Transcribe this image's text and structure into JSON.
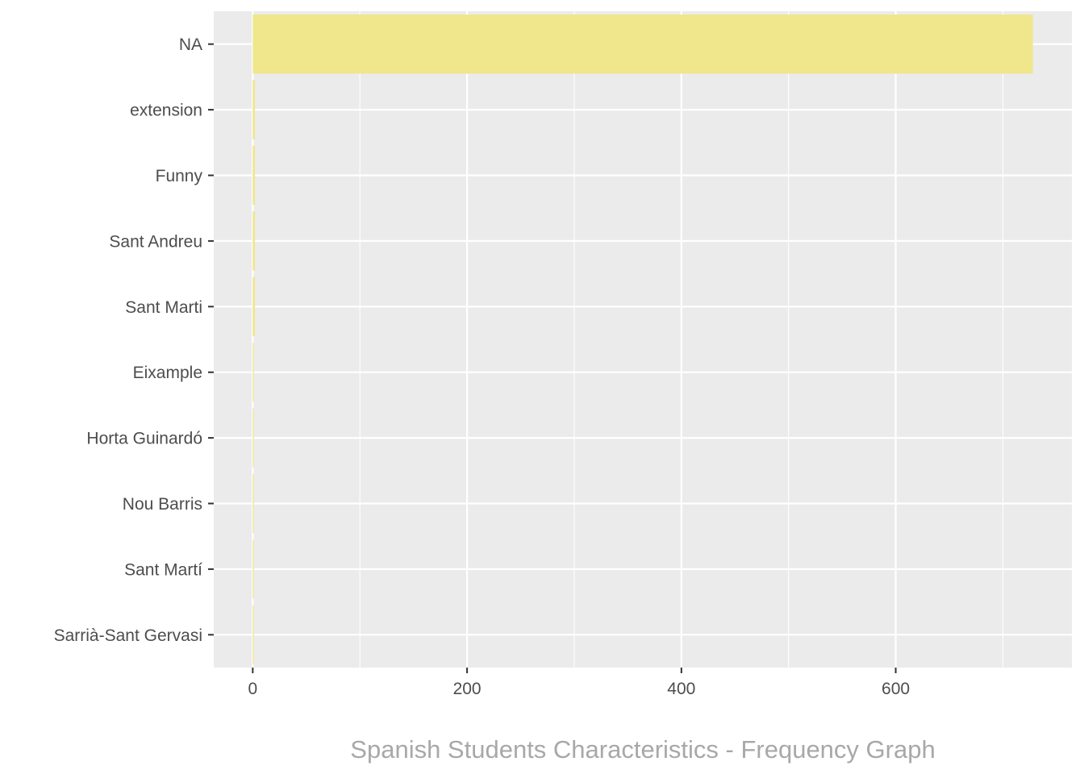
{
  "chart_data": {
    "type": "bar",
    "orientation": "horizontal",
    "categories": [
      "NA",
      "extension",
      "Funny",
      "Sant Andreu",
      "Sant Marti",
      "Eixample",
      "Horta Guinardó",
      "Nou Barris",
      "Sant Martí",
      "Sarrià-Sant Gervasi"
    ],
    "values": [
      728,
      2,
      2,
      2,
      2,
      1,
      1,
      1,
      1,
      1
    ],
    "title": "",
    "caption": "Spanish Students Characteristics - Frequency Graph",
    "xlabel": "",
    "ylabel": "",
    "xlim": [
      -36.4,
      764.4
    ],
    "xticks": [
      0,
      200,
      400,
      600
    ],
    "x_minor_ticks": [
      100,
      300,
      500,
      700
    ],
    "grid": true,
    "legend": "none",
    "bar_color": "#F0E68C",
    "panel_color": "#EBEBEB"
  }
}
